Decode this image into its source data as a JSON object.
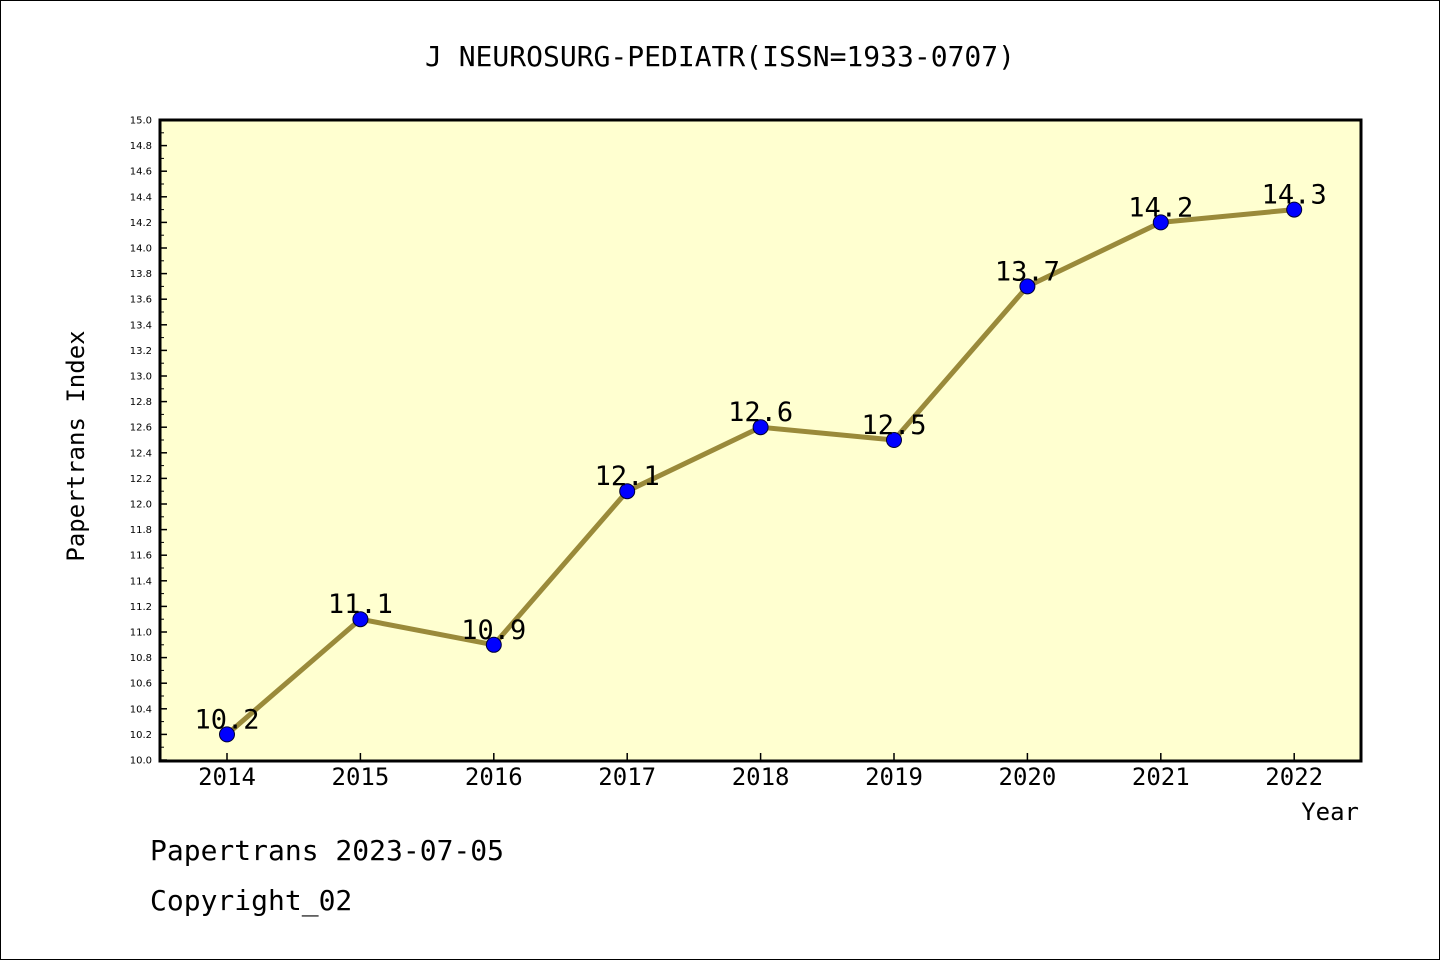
{
  "chart_data": {
    "type": "line",
    "title": "J NEUROSURG-PEDIATR(ISSN=1933-0707)",
    "xlabel": "Year",
    "ylabel": "Papertrans Index",
    "x": [
      "2014",
      "2015",
      "2016",
      "2017",
      "2018",
      "2019",
      "2020",
      "2021",
      "2022"
    ],
    "values": [
      10.2,
      11.1,
      10.9,
      12.1,
      12.6,
      12.5,
      13.7,
      14.2,
      14.3
    ],
    "data_labels": [
      "10.2",
      "11.1",
      "10.9",
      "12.1",
      "12.6",
      "12.5",
      "13.7",
      "14.2",
      "14.3"
    ],
    "ylim": [
      10.0,
      15.0
    ],
    "y_ticks": [
      "10.0",
      "10.2",
      "10.4",
      "10.6",
      "10.8",
      "11.0",
      "11.2",
      "11.4",
      "11.6",
      "11.8",
      "12.0",
      "12.2",
      "12.4",
      "12.6",
      "12.8",
      "13.0",
      "13.2",
      "13.4",
      "13.6",
      "13.8",
      "14.0",
      "14.2",
      "14.4",
      "14.6",
      "14.8",
      "15.0"
    ],
    "grid": false,
    "colors": {
      "plot_background": "#ffffd0",
      "line": "#9a8a3a",
      "marker": "#0000ff"
    }
  },
  "footer": {
    "line1": "Papertrans 2023-07-05",
    "line2": "Copyright_02"
  }
}
